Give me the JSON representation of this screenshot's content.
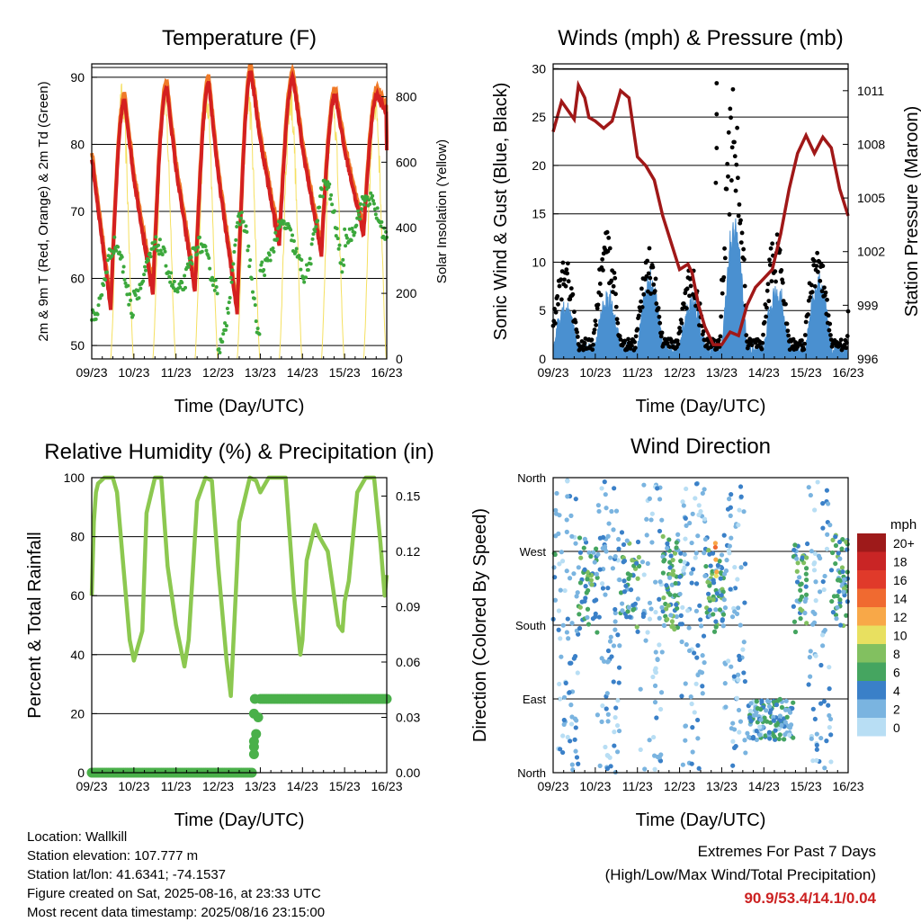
{
  "chart_data": [
    {
      "type": "line",
      "title": "Temperature (F)",
      "xlabel": "Time (Day/UTC)",
      "ylabel": "2m & 9m T (Red, Orange) & 2m Td (Green)",
      "y2label": "Solar Insolation (Yellow)",
      "x_ticks": [
        "09/23",
        "10/23",
        "11/23",
        "12/23",
        "13/23",
        "14/23",
        "15/23",
        "16/23"
      ],
      "ylim": [
        48,
        92
      ],
      "y_ticks": [
        50,
        60,
        70,
        80,
        90
      ],
      "y2lim": [
        0,
        900
      ],
      "y2_ticks": [
        0,
        200,
        400,
        600,
        800
      ],
      "grid": "horizontal",
      "series": [
        {
          "color": "#d42020",
          "highs": [
            86.5,
            88.5,
            89.0,
            90.9,
            90.0,
            87.5,
            87.5
          ],
          "lows": [
            55.5,
            57.5,
            58.0,
            55.0,
            65.0,
            63.5,
            66.5
          ],
          "end": 80.0
        },
        {
          "color": "#f07a28"
        },
        {
          "color": "#3ca83c",
          "highs": [
            65,
            65,
            65,
            69,
            68,
            74,
            72
          ],
          "lows": [
            54.5,
            58.0,
            58.0,
            50.0,
            61.5,
            60.5,
            66.0
          ],
          "end": 68.0
        },
        {
          "color": "#f5e060",
          "peak": 850
        }
      ]
    },
    {
      "type": "line",
      "title": "Winds (mph) & Pressure (mb)",
      "xlabel": "Time (Day/UTC)",
      "ylabel": "Sonic Wind & Gust (Blue, Black)",
      "y2label": "Station Pressure (Maroon)",
      "x_ticks": [
        "09/23",
        "10/23",
        "11/23",
        "12/23",
        "13/23",
        "14/23",
        "15/23",
        "16/23"
      ],
      "ylim": [
        0,
        30.5
      ],
      "y_ticks": [
        0,
        5,
        10,
        15,
        20,
        25,
        30
      ],
      "y2lim": [
        996,
        1012.5
      ],
      "y2_ticks": [
        996,
        999,
        1002,
        1005,
        1008,
        1011
      ],
      "grid": "horizontal",
      "series": [
        {
          "color": "#4a90d0",
          "peaks": [
            5,
            6,
            8,
            5.5,
            14,
            7,
            8,
            8
          ]
        },
        {
          "color": "#000000",
          "peaks": [
            10,
            13,
            11,
            9,
            28.5,
            13,
            12,
            14.5
          ]
        },
        {
          "color": "#a01818",
          "x": [
            0,
            0.2,
            0.5,
            0.6,
            0.75,
            0.85,
            1.0,
            1.2,
            1.4,
            1.6,
            1.8,
            2.0,
            2.2,
            2.4,
            2.6,
            2.8,
            3.0,
            3.2,
            3.3,
            3.45,
            3.6,
            3.8,
            4.0,
            4.2,
            4.4,
            4.6,
            4.8,
            5.0,
            5.2,
            5.4,
            5.6,
            5.8,
            6.0,
            6.2,
            6.4,
            6.6,
            6.8,
            7.0
          ],
          "y": [
            1008.7,
            1010.4,
            1009.4,
            1011.3,
            1010.6,
            1009.5,
            1009.3,
            1008.9,
            1009.3,
            1011.0,
            1010.6,
            1007.3,
            1006.8,
            1006.0,
            1004.0,
            1002.5,
            1001.0,
            1001.3,
            1000.8,
            999.0,
            997.8,
            996.8,
            996.8,
            997.5,
            997.3,
            999.0,
            1000.0,
            1000.5,
            1001.0,
            1003.0,
            1005.5,
            1007.5,
            1008.5,
            1007.5,
            1008.4,
            1007.8,
            1005.5,
            1004.0
          ]
        }
      ]
    },
    {
      "type": "line",
      "title": "Relative Humidity (%) & Precipitation (in)",
      "xlabel": "Time (Day/UTC)",
      "ylabel": "Percent & Total Rainfall",
      "x_ticks": [
        "09/23",
        "10/23",
        "11/23",
        "12/23",
        "13/23",
        "14/23",
        "15/23",
        "16/23"
      ],
      "ylim": [
        0,
        100
      ],
      "y_ticks": [
        0,
        20,
        40,
        60,
        80,
        100
      ],
      "y2lim": [
        0,
        0.16
      ],
      "y2_ticks": [
        "0.00",
        "0.03",
        "0.06",
        "0.09",
        "0.12",
        "0.15"
      ],
      "grid": "horizontal",
      "series": [
        {
          "color": "#8cc850",
          "x": [
            0,
            0.05,
            0.1,
            0.15,
            0.3,
            0.5,
            0.6,
            0.75,
            0.9,
            1.0,
            1.2,
            1.3,
            1.5,
            1.65,
            1.8,
            2.0,
            2.2,
            2.3,
            2.5,
            2.7,
            2.85,
            3.0,
            3.2,
            3.3,
            3.5,
            3.75,
            3.9,
            4.0,
            4.2,
            4.4,
            4.6,
            4.8,
            4.95,
            5.0,
            5.1,
            5.3,
            5.4,
            5.6,
            5.85,
            5.95,
            6.0,
            6.1,
            6.3,
            6.5,
            6.7,
            6.85,
            6.95,
            7.0
          ],
          "y": [
            60,
            85,
            95,
            98,
            100,
            100,
            95,
            70,
            45,
            38,
            48,
            88,
            100,
            100,
            70,
            50,
            36,
            45,
            92,
            100,
            99,
            70,
            38,
            26,
            85,
            100,
            99,
            95,
            100,
            100,
            100,
            60,
            40,
            45,
            72,
            84,
            80,
            75,
            50,
            48,
            58,
            65,
            95,
            100,
            100,
            78,
            60,
            67
          ]
        },
        {
          "color": "#4ab04a",
          "x": [
            0,
            3.8,
            3.85,
            3.88,
            3.92,
            3.95,
            4.0,
            7.0
          ],
          "y": [
            0,
            0,
            0.01,
            0.017,
            0.025,
            0.03,
            0.04,
            0.04
          ]
        }
      ]
    },
    {
      "type": "scatter",
      "title": "Wind Direction",
      "xlabel": "Time (Day/UTC)",
      "ylabel": "Direction (Colored By Speed)",
      "x_ticks": [
        "09/23",
        "10/23",
        "11/23",
        "12/23",
        "13/23",
        "14/23",
        "15/23",
        "16/23"
      ],
      "y_ticks": [
        "North",
        "East",
        "South",
        "West",
        "North"
      ],
      "ylim": [
        0,
        360
      ],
      "grid": "horizontal",
      "legend": {
        "title": "mph",
        "labels": [
          "20+",
          "18",
          "16",
          "14",
          "12",
          "10",
          "8",
          "6",
          "4",
          "2",
          "0"
        ],
        "colors": [
          "#9e1a1a",
          "#c92525",
          "#e03a2a",
          "#f06a30",
          "#f8a848",
          "#e8e060",
          "#82c060",
          "#45a560",
          "#3a80c8",
          "#7ab4e0",
          "#b8def4"
        ]
      }
    }
  ],
  "info": {
    "location": "Location: Wallkill",
    "elevation": "Station elevation: 107.777 m",
    "latlon": "Station lat/lon: 41.6341; -74.1537",
    "created": "Figure created on Sat, 2025-08-16, at 23:33 UTC",
    "recent": "Most recent data timestamp: 2025/08/16 23:15:00"
  },
  "extremes": {
    "title": "Extremes For Past 7 Days",
    "subtitle": "(High/Low/Max Wind/Total Precipitation)",
    "values": "90.9/53.4/14.1/0.04"
  }
}
